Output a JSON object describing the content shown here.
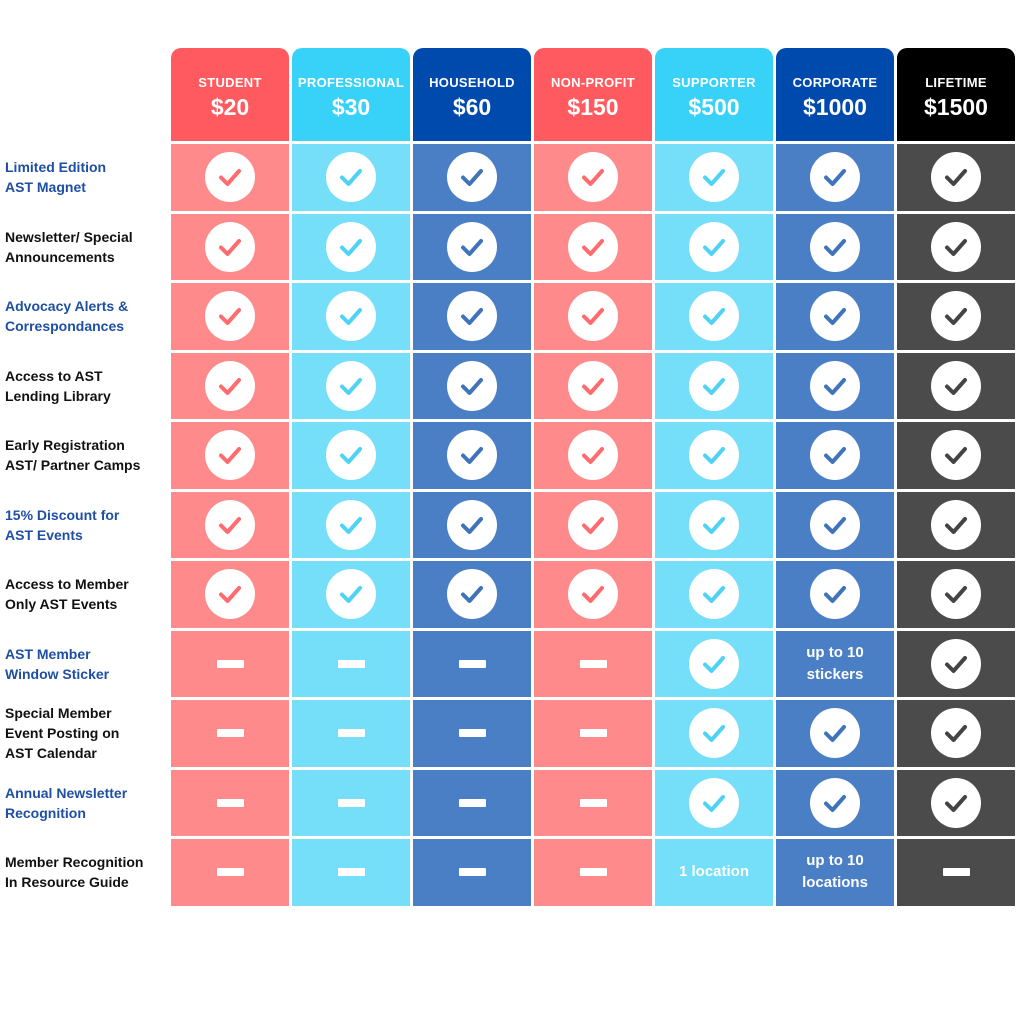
{
  "tiers": [
    {
      "name": "STUDENT",
      "price": "$20",
      "header_color": "#ff5a5f",
      "cell_color": "#ff8a8c",
      "check_color": "#ff6b6e"
    },
    {
      "name": "PROFESSIONAL",
      "price": "$30",
      "header_color": "#38d2f9",
      "cell_color": "#75def9",
      "check_color": "#4fd3f5"
    },
    {
      "name": "HOUSEHOLD",
      "price": "$60",
      "header_color": "#004aad",
      "cell_color": "#4a7fc6",
      "check_color": "#3f73ba"
    },
    {
      "name": "NON-PROFIT",
      "price": "$150",
      "header_color": "#ff5a5f",
      "cell_color": "#ff8a8c",
      "check_color": "#ff6b6e"
    },
    {
      "name": "SUPPORTER",
      "price": "$500",
      "header_color": "#38d2f9",
      "cell_color": "#75def9",
      "check_color": "#4fd3f5"
    },
    {
      "name": "CORPORATE",
      "price": "$1000",
      "header_color": "#004aad",
      "cell_color": "#4a7fc6",
      "check_color": "#3f73ba"
    },
    {
      "name": "LIFETIME",
      "price": "$1500",
      "header_color": "#000000",
      "cell_color": "#4b4b4b",
      "check_color": "#444444"
    }
  ],
  "features": [
    {
      "label": "Limited Edition\nAST Magnet",
      "color": "blue",
      "cells": [
        "check",
        "check",
        "check",
        "check",
        "check",
        "check",
        "check"
      ]
    },
    {
      "label": "Newsletter/ Special\nAnnouncements",
      "color": "black",
      "cells": [
        "check",
        "check",
        "check",
        "check",
        "check",
        "check",
        "check"
      ]
    },
    {
      "label": "Advocacy Alerts &\nCorrespondances",
      "color": "blue",
      "cells": [
        "check",
        "check",
        "check",
        "check",
        "check",
        "check",
        "check"
      ]
    },
    {
      "label": "Access to AST\nLending Library",
      "color": "black",
      "cells": [
        "check",
        "check",
        "check",
        "check",
        "check",
        "check",
        "check"
      ]
    },
    {
      "label": "Early Registration\nAST/ Partner Camps",
      "color": "black",
      "cells": [
        "check",
        "check",
        "check",
        "check",
        "check",
        "check",
        "check"
      ]
    },
    {
      "label": "15% Discount for\n AST Events",
      "color": "blue",
      "cells": [
        "check",
        "check",
        "check",
        "check",
        "check",
        "check",
        "check"
      ]
    },
    {
      "label": "Access to Member\nOnly AST Events",
      "color": "black",
      "cells": [
        "check",
        "check",
        "check",
        "check",
        "check",
        "check",
        "check"
      ]
    },
    {
      "label": "AST Member\nWindow Sticker",
      "color": "blue",
      "cells": [
        "dash",
        "dash",
        "dash",
        "dash",
        "check",
        "up to 10\nstickers",
        "check"
      ]
    },
    {
      "label": "Special Member\nEvent Posting on\nAST Calendar",
      "color": "black",
      "cells": [
        "dash",
        "dash",
        "dash",
        "dash",
        "check",
        "check",
        "check"
      ]
    },
    {
      "label": "Annual Newsletter\nRecognition",
      "color": "blue",
      "cells": [
        "dash",
        "dash",
        "dash",
        "dash",
        "check",
        "check",
        "check"
      ]
    },
    {
      "label": "Member Recognition\nIn Resource Guide",
      "color": "black",
      "cells": [
        "dash",
        "dash",
        "dash",
        "dash",
        "1 location",
        "up to 10\nlocations",
        "dash"
      ]
    }
  ]
}
